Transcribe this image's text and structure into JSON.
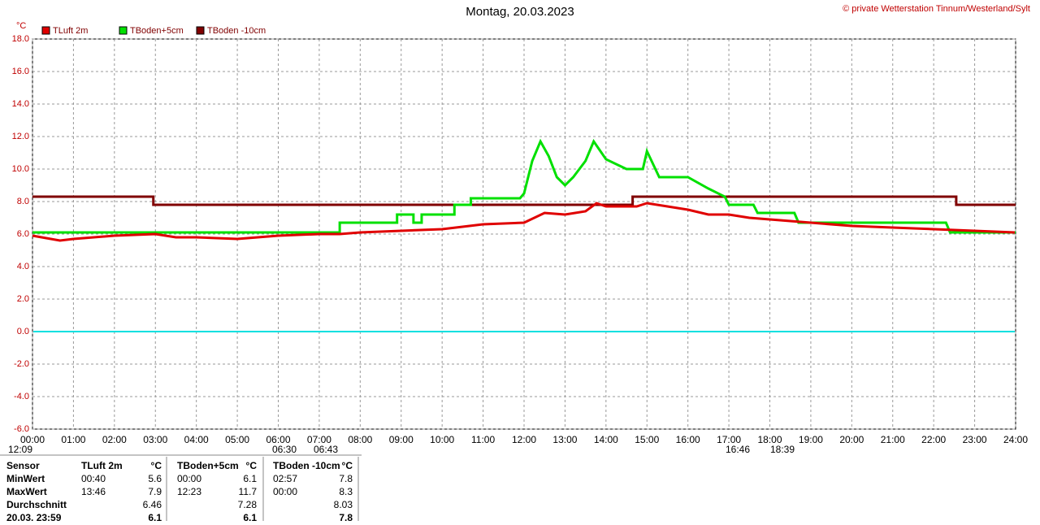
{
  "chart_data": {
    "type": "line",
    "title": "Montag, 20.03.2023",
    "credit": "© private Wetterstation Tinnum/Westerland/Sylt",
    "y_unit": "°C",
    "xlim": [
      0,
      24
    ],
    "xticks": [
      {
        "value": 0,
        "label": "00:00"
      },
      {
        "value": 1,
        "label": "01:00"
      },
      {
        "value": 2,
        "label": "02:00"
      },
      {
        "value": 3,
        "label": "03:00"
      },
      {
        "value": 4,
        "label": "04:00"
      },
      {
        "value": 5,
        "label": "05:00"
      },
      {
        "value": 6,
        "label": "06:00"
      },
      {
        "value": 7,
        "label": "07:00"
      },
      {
        "value": 8,
        "label": "08:00"
      },
      {
        "value": 9,
        "label": "09:00"
      },
      {
        "value": 10,
        "label": "10:00"
      },
      {
        "value": 11,
        "label": "11:00"
      },
      {
        "value": 12,
        "label": "12:00"
      },
      {
        "value": 13,
        "label": "13:00"
      },
      {
        "value": 14,
        "label": "14:00"
      },
      {
        "value": 15,
        "label": "15:00"
      },
      {
        "value": 16,
        "label": "16:00"
      },
      {
        "value": 17,
        "label": "17:00"
      },
      {
        "value": 18,
        "label": "18:00"
      },
      {
        "value": 19,
        "label": "19:00"
      },
      {
        "value": 20,
        "label": "20:00"
      },
      {
        "value": 21,
        "label": "21:00"
      },
      {
        "value": 22,
        "label": "22:00"
      },
      {
        "value": 23,
        "label": "23:00"
      },
      {
        "value": 24,
        "label": "24:00"
      }
    ],
    "ylim": [
      -6,
      18
    ],
    "yticks": [
      {
        "value": -6,
        "label": "-6.0"
      },
      {
        "value": -4,
        "label": "-4.0"
      },
      {
        "value": -2,
        "label": "-2.0"
      },
      {
        "value": 0,
        "label": "0.0"
      },
      {
        "value": 2,
        "label": "2.0"
      },
      {
        "value": 4,
        "label": "4.0"
      },
      {
        "value": 6,
        "label": "6.0"
      },
      {
        "value": 8,
        "label": "8.0"
      },
      {
        "value": 10,
        "label": "10.0"
      },
      {
        "value": 12,
        "label": "12.0"
      },
      {
        "value": 14,
        "label": "14.0"
      },
      {
        "value": 16,
        "label": "16.0"
      },
      {
        "value": 18,
        "label": "18.0"
      }
    ],
    "grid": true,
    "reference_line": {
      "value": 0,
      "color": "#00e0e0"
    },
    "series": [
      {
        "name": "TLuft 2m",
        "color": "#e00000",
        "x": [
          0,
          0.67,
          1,
          2,
          3,
          3.5,
          4,
          5,
          6,
          7,
          7.5,
          8,
          9,
          10,
          11,
          12,
          12.5,
          13,
          13.5,
          13.77,
          14,
          14.75,
          15,
          15.5,
          16,
          16.5,
          17,
          17.5,
          18,
          19,
          20,
          21,
          22,
          23,
          23.98
        ],
        "values": [
          5.9,
          5.6,
          5.7,
          5.9,
          6.0,
          5.8,
          5.8,
          5.7,
          5.9,
          6.0,
          6.0,
          6.1,
          6.2,
          6.3,
          6.6,
          6.7,
          7.3,
          7.2,
          7.4,
          7.9,
          7.7,
          7.7,
          7.9,
          7.7,
          7.5,
          7.2,
          7.2,
          7.0,
          6.9,
          6.7,
          6.5,
          6.4,
          6.3,
          6.2,
          6.1
        ]
      },
      {
        "name": "TBoden+5cm",
        "color": "#00e000",
        "x": [
          0,
          7.5,
          7.5,
          8.9,
          8.9,
          9.3,
          9.3,
          9.5,
          9.5,
          10.3,
          10.3,
          10.7,
          10.7,
          11.9,
          12.0,
          12.2,
          12.4,
          12.6,
          12.8,
          13.0,
          13.2,
          13.5,
          13.7,
          14.0,
          14.5,
          14.9,
          15.0,
          15.3,
          16.0,
          16.5,
          16.9,
          17.0,
          17.6,
          17.7,
          18.6,
          18.7,
          22.3,
          22.4,
          24
        ],
        "values": [
          6.1,
          6.1,
          6.7,
          6.7,
          7.2,
          7.2,
          6.7,
          6.7,
          7.2,
          7.2,
          7.8,
          7.8,
          8.2,
          8.2,
          8.5,
          10.5,
          11.7,
          10.8,
          9.5,
          9.0,
          9.5,
          10.5,
          11.7,
          10.6,
          10.0,
          10.0,
          11.1,
          9.5,
          9.5,
          8.8,
          8.3,
          7.8,
          7.8,
          7.3,
          7.3,
          6.7,
          6.7,
          6.1,
          6.1
        ]
      },
      {
        "name": "TBoden -10cm",
        "color": "#800000",
        "x": [
          0,
          2.95,
          2.95,
          14.65,
          14.65,
          22.55,
          22.55,
          24
        ],
        "values": [
          8.3,
          8.3,
          7.8,
          7.8,
          8.3,
          8.3,
          7.8,
          7.8
        ]
      }
    ],
    "annotations": [
      "12:09",
      "06:30",
      "06:43",
      "16:46",
      "18:39"
    ]
  },
  "table": {
    "header": [
      "Sensor",
      "TLuft 2m",
      "°C",
      "TBoden+5cm",
      "°C",
      "TBoden -10cm",
      "°C"
    ],
    "rows": [
      [
        "MinWert",
        "00:40",
        "5.6",
        "00:00",
        "6.1",
        "02:57",
        "7.8"
      ],
      [
        "MaxWert",
        "13:46",
        "7.9",
        "12:23",
        "11.7",
        "00:00",
        "8.3"
      ],
      [
        "Durchschnitt",
        null,
        "6.46",
        null,
        "7.28",
        null,
        "8.03"
      ],
      [
        "20.03. 23:59",
        null,
        "6.1",
        null,
        "6.1",
        null,
        "7.8"
      ]
    ]
  }
}
